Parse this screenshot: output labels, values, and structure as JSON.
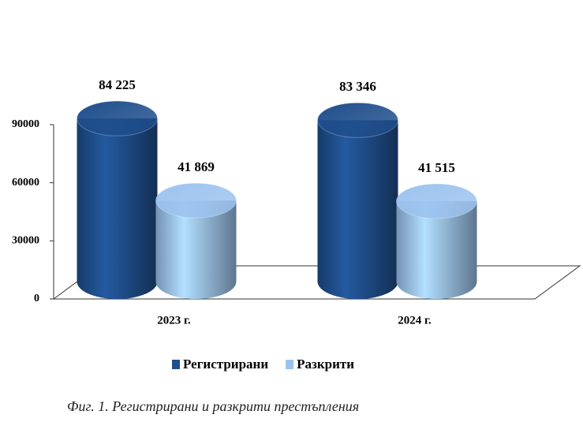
{
  "chart_data": {
    "type": "cylinder-bar",
    "caption": "Фиг. 1. Регистрирани и разкрити престъпления",
    "categories": [
      "2023 г.",
      "2024 г."
    ],
    "series": [
      {
        "name": "Регистрирани",
        "color": "#1f4e8c",
        "values": [
          84225,
          83346
        ],
        "value_labels": [
          "84 225",
          "83 346"
        ]
      },
      {
        "name": "Разкрити",
        "color": "#9cc3ef",
        "values": [
          41869,
          41515
        ],
        "value_labels": [
          "41 869",
          "41 515"
        ]
      }
    ],
    "ylim": [
      0,
      90000
    ],
    "yticks": [
      0,
      30000,
      60000,
      90000
    ],
    "grid": false,
    "legend": "bottom"
  }
}
